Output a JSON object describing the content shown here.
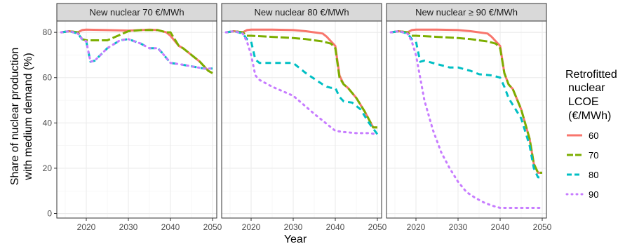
{
  "chart_data": {
    "type": "line",
    "xlabel": "Year",
    "ylabel_lines": [
      "Share of nuclear production",
      "with medium demand (%)"
    ],
    "xlim": [
      2013,
      2051
    ],
    "ylim": [
      -2,
      85
    ],
    "xticks": [
      2020,
      2030,
      2040,
      2050
    ],
    "yticks": [
      0,
      20,
      40,
      60,
      80
    ],
    "grid": true,
    "legend": {
      "title_lines": [
        "Retrofitted",
        "nuclear",
        "LCOE",
        "(€/MWh)"
      ],
      "position": "right",
      "entries": [
        "60",
        "70",
        "80",
        "90"
      ]
    },
    "series_styles": [
      {
        "name": "60",
        "color": "#F8766D",
        "dash": "solid"
      },
      {
        "name": "70",
        "color": "#7CAE00",
        "dash": "long-dash"
      },
      {
        "name": "80",
        "color": "#00BFC4",
        "dash": "dash"
      },
      {
        "name": "90",
        "color": "#C77CFF",
        "dash": "dot"
      }
    ],
    "panels": [
      {
        "title": "New nuclear 70 €/MWh",
        "series": [
          {
            "name": "60",
            "x": [
              2014,
              2016,
              2018,
              2019,
              2020,
              2025,
              2030,
              2033,
              2035,
              2037,
              2039,
              2040,
              2042,
              2043,
              2045,
              2047,
              2049,
              2050
            ],
            "y": [
              80,
              80.5,
              80,
              81,
              81.2,
              81,
              80.8,
              81,
              81.2,
              81,
              80,
              78.5,
              74,
              73,
              70,
              67,
              63,
              62
            ]
          },
          {
            "name": "70",
            "x": [
              2014,
              2016,
              2018,
              2019,
              2020,
              2025,
              2030,
              2033,
              2035,
              2037,
              2039,
              2040,
              2042,
              2043,
              2045,
              2047,
              2049,
              2050
            ],
            "y": [
              80,
              80.5,
              80,
              77,
              76.5,
              76.5,
              80.5,
              81,
              81,
              81,
              80,
              80,
              74,
              73,
              70,
              67,
              63,
              62
            ]
          },
          {
            "name": "80",
            "x": [
              2014,
              2016,
              2018,
              2019,
              2020,
              2021,
              2022,
              2025,
              2028,
              2030,
              2033,
              2035,
              2037,
              2038,
              2040,
              2042,
              2045,
              2048,
              2050
            ],
            "y": [
              80,
              80.5,
              79.5,
              77,
              76,
              67,
              67.5,
              73,
              76.5,
              77,
              75,
              73,
              73,
              71,
              66.5,
              66,
              65,
              64,
              64
            ]
          },
          {
            "name": "90",
            "x": [
              2014,
              2016,
              2018,
              2019,
              2020,
              2021,
              2022,
              2025,
              2028,
              2030,
              2033,
              2035,
              2037,
              2038,
              2040,
              2042,
              2045,
              2048,
              2050
            ],
            "y": [
              80,
              80.5,
              79.5,
              77,
              76,
              67,
              67.5,
              73,
              76.5,
              77,
              75,
              73,
              73,
              71,
              66.5,
              66,
              65,
              64,
              64
            ]
          }
        ]
      },
      {
        "title": "New nuclear 80 €/MWh",
        "series": [
          {
            "name": "60",
            "x": [
              2014,
              2016,
              2018,
              2019,
              2020,
              2025,
              2030,
              2033,
              2035,
              2037,
              2038,
              2039,
              2040,
              2041,
              2042,
              2043,
              2045,
              2047,
              2049,
              2050
            ],
            "y": [
              80,
              80.5,
              80,
              81,
              81.2,
              81.2,
              81,
              80.5,
              80,
              79.5,
              78,
              76,
              74,
              61,
              57,
              55.5,
              51,
              45,
              38,
              38
            ]
          },
          {
            "name": "70",
            "x": [
              2014,
              2016,
              2018,
              2019,
              2020,
              2025,
              2030,
              2033,
              2035,
              2037,
              2038,
              2039,
              2040,
              2041,
              2042,
              2043,
              2045,
              2047,
              2049,
              2050
            ],
            "y": [
              80,
              80.5,
              80,
              78.5,
              78.5,
              78,
              77.5,
              77,
              76.5,
              76,
              75.5,
              75,
              73,
              60,
              57,
              55.5,
              51,
              45,
              38,
              38
            ]
          },
          {
            "name": "80",
            "x": [
              2014,
              2016,
              2018,
              2019,
              2020,
              2021,
              2022,
              2025,
              2028,
              2030,
              2033,
              2035,
              2037,
              2038,
              2039,
              2040,
              2041,
              2042,
              2044,
              2046,
              2048,
              2050
            ],
            "y": [
              80,
              80.5,
              79.5,
              77,
              76,
              68,
              66.5,
              66.5,
              66.5,
              66.5,
              62,
              59.5,
              57,
              56,
              55.5,
              55.5,
              51.5,
              49.5,
              49,
              46,
              40,
              35
            ]
          },
          {
            "name": "90",
            "x": [
              2014,
              2016,
              2018,
              2019,
              2020,
              2021,
              2022,
              2025,
              2030,
              2035,
              2040,
              2042,
              2045,
              2048,
              2050
            ],
            "y": [
              80,
              80.5,
              79.5,
              76,
              70,
              61,
              59,
              56,
              52,
              44,
              36.5,
              36,
              35.5,
              35.5,
              35
            ]
          }
        ]
      },
      {
        "title": "New nuclear ≥ 90 €/MWh",
        "series": [
          {
            "name": "60",
            "x": [
              2014,
              2016,
              2018,
              2019,
              2020,
              2025,
              2030,
              2033,
              2035,
              2037,
              2038,
              2039,
              2040,
              2041,
              2042,
              2043,
              2045,
              2047,
              2048,
              2049,
              2050
            ],
            "y": [
              80,
              80.5,
              80,
              81,
              81.2,
              81.2,
              81,
              80.5,
              80,
              79.5,
              78,
              76,
              74,
              62,
              57,
              55,
              46,
              33,
              22,
              18,
              18
            ]
          },
          {
            "name": "70",
            "x": [
              2014,
              2016,
              2018,
              2019,
              2020,
              2025,
              2030,
              2033,
              2035,
              2037,
              2038,
              2039,
              2040,
              2041,
              2042,
              2043,
              2045,
              2047,
              2048,
              2049,
              2050
            ],
            "y": [
              80,
              80.5,
              80,
              78.5,
              78.5,
              78,
              77.5,
              77,
              76.5,
              76,
              75.5,
              75,
              73,
              62,
              57,
              55,
              46,
              33,
              22,
              18,
              18
            ]
          },
          {
            "name": "80",
            "x": [
              2014,
              2016,
              2018,
              2019,
              2020,
              2021,
              2022,
              2025,
              2028,
              2030,
              2033,
              2035,
              2038,
              2040,
              2041,
              2042,
              2045,
              2047,
              2048,
              2049,
              2050
            ],
            "y": [
              80,
              80.5,
              79.5,
              77,
              76,
              67,
              67.5,
              66,
              64.5,
              64.5,
              63,
              61.5,
              61,
              60,
              56,
              51,
              42,
              30,
              20,
              16,
              16
            ]
          },
          {
            "name": "90",
            "x": [
              2014,
              2016,
              2018,
              2019,
              2020,
              2021,
              2022,
              2024,
              2026,
              2028,
              2030,
              2032,
              2034,
              2036,
              2038,
              2040,
              2042,
              2045,
              2048,
              2050
            ],
            "y": [
              80,
              80.5,
              79.5,
              76,
              70,
              60,
              50,
              37,
              27,
              20,
              14,
              9.5,
              7,
              5,
              3.5,
              2.5,
              2.5,
              2.5,
              2.5,
              2.5
            ]
          }
        ]
      }
    ]
  }
}
